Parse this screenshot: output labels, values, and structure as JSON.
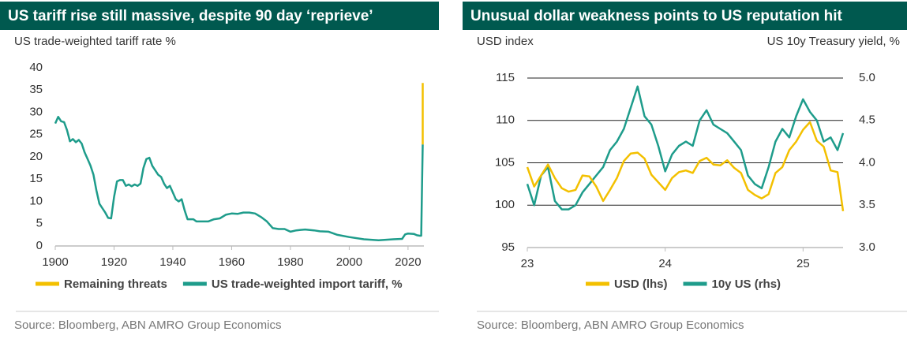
{
  "chart_data": [
    {
      "type": "line",
      "title": "US tariff rise still massive, despite 90 day ‘reprieve’",
      "y_label": "US trade-weighted tariff rate %",
      "source": "Source: Bloomberg, ABN AMRO Group Economics",
      "xlim": [
        1900,
        2025.4
      ],
      "xticks": [
        1900,
        1920,
        1940,
        1960,
        1980,
        2000,
        2020
      ],
      "ylim": [
        0,
        40
      ],
      "yticks": [
        0,
        5,
        10,
        15,
        20,
        25,
        30,
        35,
        40
      ],
      "grid": false,
      "legend": "bottom",
      "series": [
        {
          "name": "Remaining threats",
          "color": "#f3c000",
          "x": [
            2025,
            2025
          ],
          "values": [
            22.8,
            36.6
          ]
        },
        {
          "name": "US trade-weighted import tariff, %",
          "color": "#1e9c8b",
          "x": [
            1900,
            1901,
            1902,
            1903,
            1904,
            1905,
            1906,
            1907,
            1908,
            1909,
            1910,
            1911,
            1912,
            1913,
            1914,
            1915,
            1916,
            1917,
            1918,
            1919,
            1920,
            1921,
            1922,
            1923,
            1924,
            1925,
            1926,
            1927,
            1928,
            1929,
            1930,
            1931,
            1932,
            1933,
            1934,
            1935,
            1936,
            1937,
            1938,
            1939,
            1940,
            1941,
            1942,
            1943,
            1944,
            1945,
            1946,
            1947,
            1948,
            1950,
            1952,
            1954,
            1956,
            1958,
            1960,
            1962,
            1964,
            1966,
            1968,
            1970,
            1972,
            1974,
            1976,
            1978,
            1980,
            1982,
            1985,
            1988,
            1990,
            1993,
            1996,
            2000,
            2005,
            2010,
            2015,
            2018,
            2019,
            2020,
            2022,
            2023,
            2024,
            2024.5,
            2025
          ],
          "values": [
            27.5,
            29,
            28,
            27.8,
            26,
            23.5,
            24,
            23.3,
            23.8,
            23,
            21,
            19.5,
            18,
            16,
            12.5,
            9.5,
            8.5,
            7.5,
            6.3,
            6.2,
            11,
            14.5,
            14.8,
            14.8,
            13.5,
            13.8,
            13.4,
            13.8,
            13.5,
            14,
            17.5,
            19.5,
            19.8,
            18,
            17,
            16,
            15.5,
            14,
            13,
            13.5,
            12,
            10.5,
            10,
            10.5,
            8,
            6,
            6,
            6,
            5.5,
            5.5,
            5.5,
            6,
            6.2,
            7,
            7.3,
            7.2,
            7.5,
            7.5,
            7.3,
            6.5,
            5.5,
            4,
            3.8,
            3.8,
            3.2,
            3.5,
            3.7,
            3.5,
            3.3,
            3.2,
            2.5,
            2.0,
            1.5,
            1.3,
            1.5,
            1.6,
            2.6,
            2.8,
            2.7,
            2.4,
            2.3,
            2.3,
            22.8
          ]
        }
      ]
    },
    {
      "type": "line",
      "title": "Unusual dollar weakness points to US reputation hit",
      "y_label": "USD index",
      "y2_label": "US 10y Treasury yield, %",
      "source": "Source: Bloomberg, ABN AMRO Group Economics",
      "xlim": [
        23,
        25.29
      ],
      "xticks": [
        23,
        24,
        25
      ],
      "ylim": [
        95,
        115
      ],
      "yticks": [
        95,
        100,
        105,
        110,
        115
      ],
      "y2lim": [
        3,
        5
      ],
      "y2ticks": [
        {
          "value": 3,
          "label": "3.0"
        },
        3.5,
        {
          "value": 4,
          "label": "4.0"
        },
        4.5,
        {
          "value": 5,
          "label": "5.0"
        }
      ],
      "grid": true,
      "legend": "bottom",
      "series": [
        {
          "name": "USD (lhs)",
          "color": "#f3c000",
          "axis": "y",
          "x": [
            23.0,
            23.05,
            23.1,
            23.15,
            23.2,
            23.25,
            23.3,
            23.35,
            23.4,
            23.45,
            23.5,
            23.55,
            23.6,
            23.65,
            23.7,
            23.75,
            23.8,
            23.85,
            23.9,
            23.95,
            24.0,
            24.05,
            24.1,
            24.15,
            24.2,
            24.25,
            24.3,
            24.35,
            24.4,
            24.45,
            24.5,
            24.55,
            24.6,
            24.65,
            24.7,
            24.75,
            24.8,
            24.85,
            24.9,
            24.95,
            25.0,
            25.05,
            25.1,
            25.15,
            25.2,
            25.25,
            25.29
          ],
          "values": [
            104.5,
            102.2,
            103.5,
            104.8,
            103.2,
            102,
            101.6,
            101.8,
            103.5,
            103.4,
            102.2,
            100.5,
            101.8,
            103.2,
            105.2,
            106.1,
            106.2,
            105.5,
            103.6,
            102.7,
            101.8,
            103.2,
            103.9,
            104.1,
            103.8,
            105.2,
            105.6,
            104.8,
            104.7,
            105.3,
            104.4,
            103.8,
            101.8,
            101.2,
            100.8,
            101.3,
            103.8,
            104.5,
            106.5,
            107.5,
            108.9,
            109.8,
            107.6,
            106.9,
            104.1,
            103.9,
            99.3
          ]
        },
        {
          "name": "10y US (rhs)",
          "color": "#1e9c8b",
          "axis": "y2",
          "x": [
            23.0,
            23.05,
            23.1,
            23.15,
            23.2,
            23.25,
            23.3,
            23.35,
            23.4,
            23.45,
            23.5,
            23.55,
            23.6,
            23.65,
            23.7,
            23.75,
            23.8,
            23.85,
            23.9,
            23.95,
            24.0,
            24.05,
            24.1,
            24.15,
            24.2,
            24.25,
            24.3,
            24.35,
            24.4,
            24.45,
            24.5,
            24.55,
            24.6,
            24.65,
            24.7,
            24.75,
            24.8,
            24.85,
            24.9,
            24.95,
            25.0,
            25.05,
            25.1,
            25.15,
            25.2,
            25.25,
            25.29
          ],
          "values": [
            3.75,
            3.5,
            3.85,
            3.95,
            3.55,
            3.45,
            3.45,
            3.5,
            3.65,
            3.75,
            3.85,
            3.95,
            4.15,
            4.25,
            4.4,
            4.65,
            4.9,
            4.55,
            4.45,
            4.2,
            3.9,
            4.1,
            4.2,
            4.25,
            4.2,
            4.5,
            4.62,
            4.45,
            4.4,
            4.35,
            4.25,
            4.15,
            3.85,
            3.75,
            3.7,
            3.95,
            4.25,
            4.4,
            4.3,
            4.55,
            4.75,
            4.6,
            4.5,
            4.25,
            4.3,
            4.15,
            4.35
          ]
        }
      ]
    }
  ]
}
